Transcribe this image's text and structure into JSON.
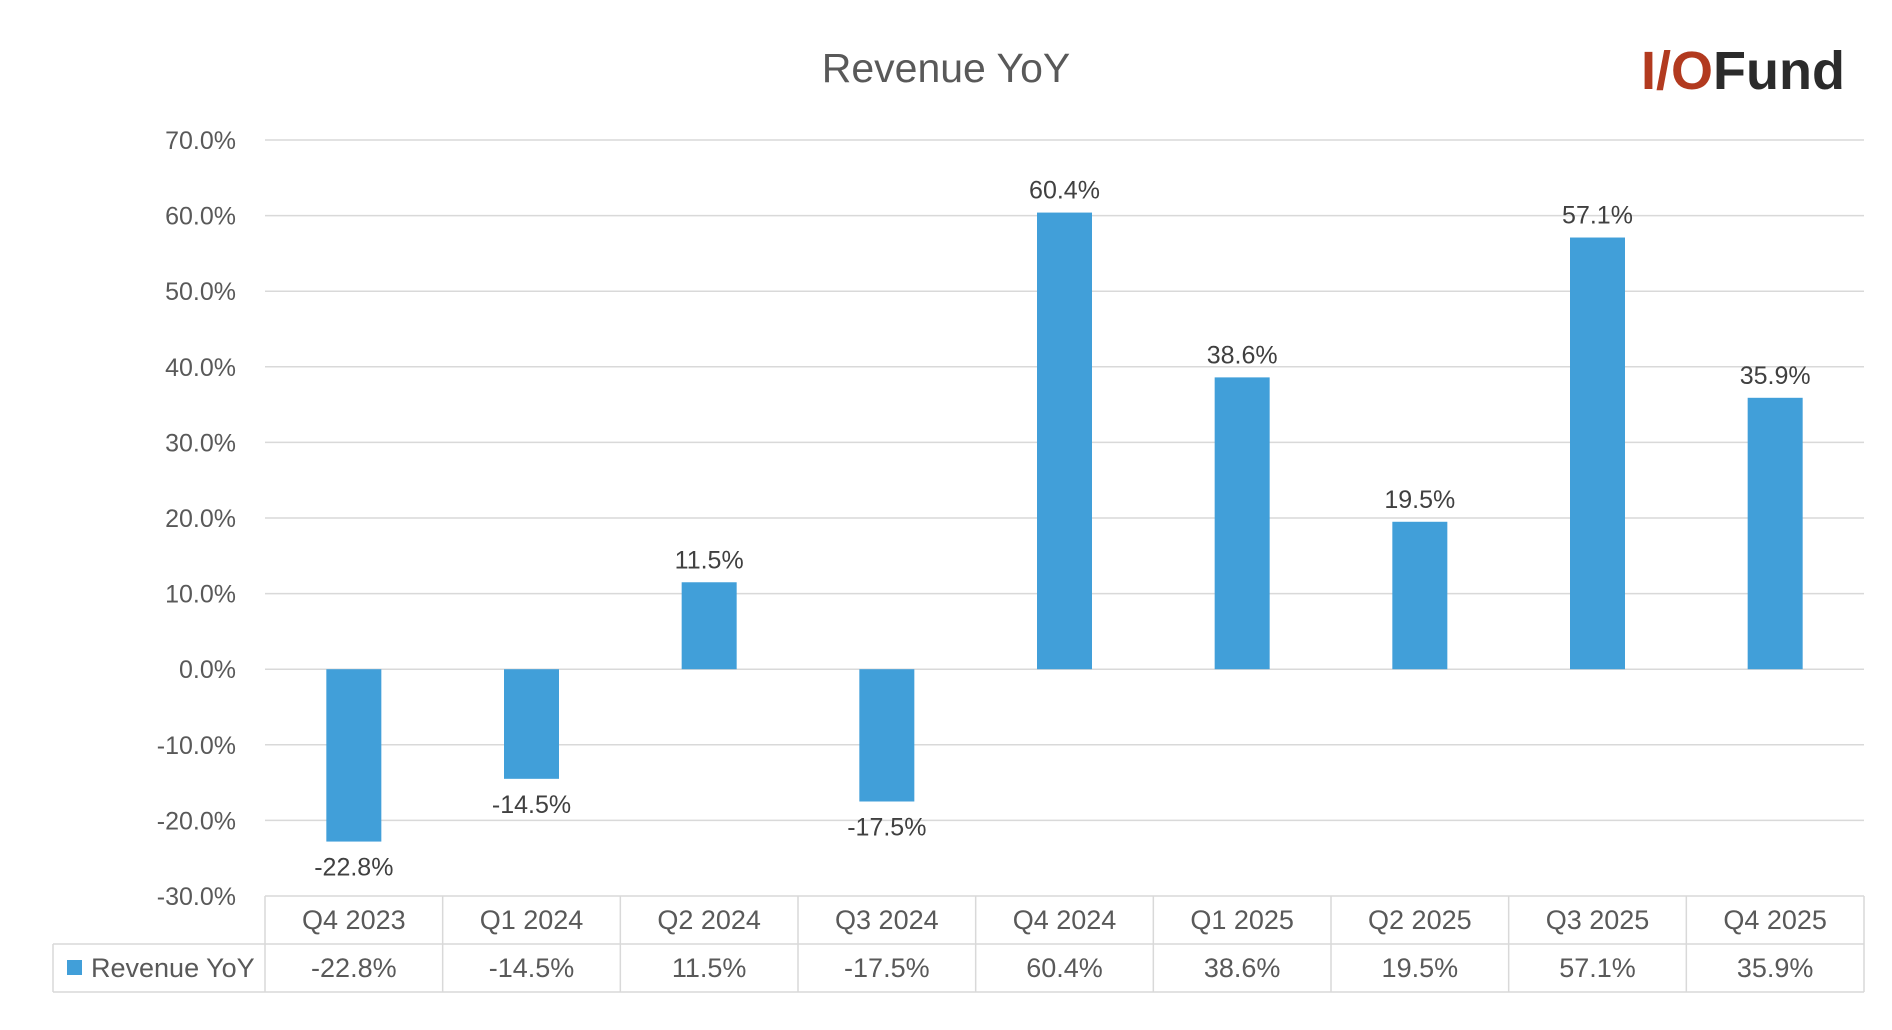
{
  "logo": {
    "text_1": "I/O",
    "text_2": "Fund",
    "color_1": "#b23a1f",
    "color_2": "#2b2b2b"
  },
  "chart_data": {
    "type": "bar",
    "title": "Revenue YoY",
    "categories": [
      "Q4 2023",
      "Q1 2024",
      "Q2 2024",
      "Q3 2024",
      "Q4 2024",
      "Q1 2025",
      "Q2 2025",
      "Q3 2025",
      "Q4 2025"
    ],
    "series": [
      {
        "name": "Revenue YoY",
        "values": [
          -22.8,
          -14.5,
          11.5,
          -17.5,
          60.4,
          38.6,
          19.5,
          57.1,
          35.9
        ],
        "labels": [
          "-22.8%",
          "-14.5%",
          "11.5%",
          "-17.5%",
          "60.4%",
          "38.6%",
          "19.5%",
          "57.1%",
          "35.9%"
        ],
        "color": "#419fd9"
      }
    ],
    "ylim": [
      -30,
      70
    ],
    "y_ticks": [
      "70.0%",
      "60.0%",
      "50.0%",
      "40.0%",
      "30.0%",
      "20.0%",
      "10.0%",
      "0.0%",
      "-10.0%",
      "-20.0%",
      "-30.0%"
    ],
    "y_tick_values": [
      70,
      60,
      50,
      40,
      30,
      20,
      10,
      0,
      -10,
      -20,
      -30
    ],
    "grid": true,
    "legend": "data table below chart",
    "gridline_color": "#d9d9d9"
  }
}
